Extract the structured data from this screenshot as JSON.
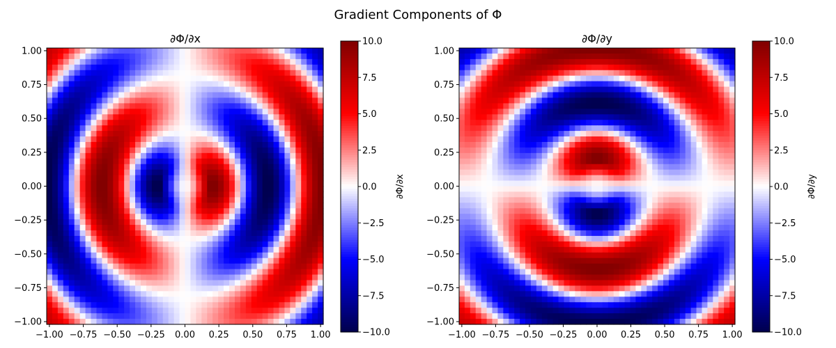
{
  "figure": {
    "suptitle": "Gradient Components of Φ"
  },
  "chart_data": [
    {
      "type": "heatmap",
      "title": "∂Φ/∂x",
      "component": "dx",
      "xlabel": "",
      "ylabel": "",
      "xlim": [
        -1.0,
        1.0
      ],
      "ylim": [
        -1.0,
        1.0
      ],
      "x_ticks": [
        "−1.00",
        "−0.75",
        "−0.50",
        "−0.25",
        "0.00",
        "0.25",
        "0.50",
        "0.75",
        "1.00"
      ],
      "y_ticks": [
        "−1.00",
        "−0.75",
        "−0.50",
        "−0.25",
        "0.00",
        "0.25",
        "0.50",
        "0.75",
        "1.00"
      ],
      "grid_size": 50,
      "colormap": "seismic",
      "vmin": -10,
      "vmax": 10,
      "colorbar": {
        "label": "∂Φ/∂x",
        "ticks": [
          "10.0",
          "7.5",
          "5.0",
          "2.5",
          "0.0",
          "−2.5",
          "−5.0",
          "−7.5",
          "−10.0"
        ]
      },
      "grid": false
    },
    {
      "type": "heatmap",
      "title": "∂Φ/∂y",
      "component": "dy",
      "xlabel": "",
      "ylabel": "",
      "xlim": [
        -1.0,
        1.0
      ],
      "ylim": [
        -1.0,
        1.0
      ],
      "x_ticks": [
        "−1.00",
        "−0.75",
        "−0.50",
        "−0.25",
        "0.00",
        "0.25",
        "0.50",
        "0.75",
        "1.00"
      ],
      "y_ticks": [
        "−1.00",
        "−0.75",
        "−0.50",
        "−0.25",
        "0.00",
        "0.25",
        "0.50",
        "0.75",
        "1.00"
      ],
      "grid_size": 50,
      "colormap": "seismic",
      "vmin": -10,
      "vmax": 10,
      "colorbar": {
        "label": "∂Φ/∂y",
        "ticks": [
          "10.0",
          "7.5",
          "5.0",
          "2.5",
          "0.0",
          "−2.5",
          "−5.0",
          "−7.5",
          "−10.0"
        ]
      },
      "grid": false
    }
  ]
}
